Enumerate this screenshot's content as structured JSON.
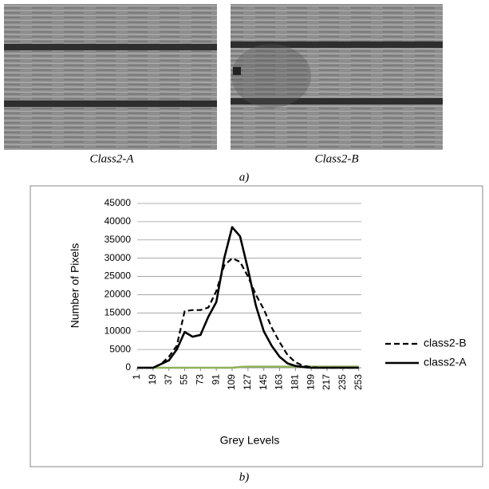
{
  "figure": {
    "captions": [
      "Class2-A",
      "Class2-B"
    ],
    "label_a": "a)",
    "label_b": "b)"
  },
  "chart_data": {
    "type": "line",
    "y_label": "Number of Pixels",
    "x_label": "Grey Levels",
    "x": [
      1,
      10,
      19,
      28,
      37,
      46,
      55,
      64,
      73,
      82,
      91,
      100,
      109,
      118,
      127,
      136,
      145,
      154,
      163,
      172,
      181,
      190,
      199,
      208,
      217,
      226,
      235,
      244,
      253
    ],
    "series": [
      {
        "name": "class2-B",
        "color": "#000000",
        "dash": true,
        "values": [
          0,
          0,
          0,
          1000,
          3000,
          6000,
          15500,
          15800,
          15800,
          16500,
          21000,
          28000,
          30000,
          29000,
          25000,
          20000,
          16000,
          11000,
          7000,
          3500,
          1500,
          500,
          200,
          0,
          0,
          0,
          0,
          0,
          0
        ]
      },
      {
        "name": "class2-A",
        "color": "#000000",
        "dash": false,
        "values": [
          0,
          0,
          0,
          1000,
          2000,
          5000,
          9800,
          8500,
          9000,
          14000,
          18000,
          30000,
          38500,
          36000,
          27000,
          17000,
          10000,
          6000,
          3000,
          1200,
          500,
          200,
          0,
          0,
          0,
          0,
          0,
          0,
          0
        ]
      },
      {
        "color": "#8db05a",
        "dash": false,
        "values": [
          0,
          0,
          0,
          0,
          0,
          0,
          0,
          0,
          0,
          0,
          0,
          0,
          0,
          200,
          300,
          300,
          300,
          300,
          300,
          300,
          300,
          300,
          300,
          300,
          300,
          300,
          300,
          300,
          300
        ]
      }
    ],
    "xlim": [
      1,
      256
    ],
    "xticks": [
      1,
      19,
      37,
      55,
      73,
      91,
      109,
      127,
      145,
      163,
      181,
      199,
      217,
      235,
      253
    ],
    "ylim": [
      0,
      45000
    ],
    "yticks": [
      0,
      5000,
      10000,
      15000,
      20000,
      25000,
      30000,
      35000,
      40000,
      45000
    ],
    "grid": true,
    "legend": "right"
  }
}
